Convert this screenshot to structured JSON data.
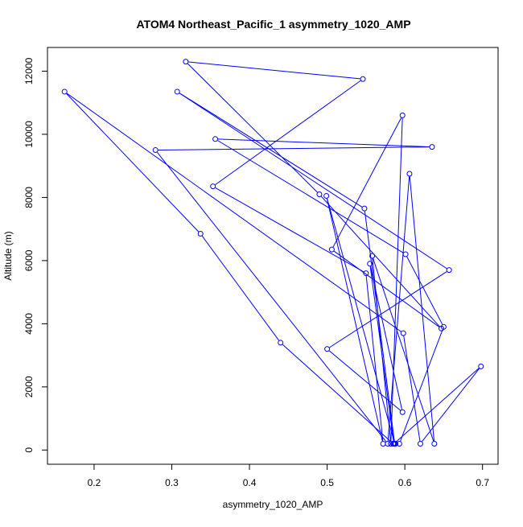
{
  "chart_data": {
    "type": "line",
    "title": "ATOM4 Northeast_Pacific_1 asymmetry_1020_AMP",
    "xlabel": "asymmetry_1020_AMP",
    "ylabel": "Altitude (m)",
    "xlim": [
      0.14,
      0.72
    ],
    "ylim": [
      -450,
      12750
    ],
    "x_ticks": [
      0.2,
      0.3,
      0.4,
      0.5,
      0.6,
      0.7
    ],
    "x_tick_labels": [
      "0.2",
      "0.3",
      "0.4",
      "0.5",
      "0.6",
      "0.7"
    ],
    "y_ticks": [
      0,
      2000,
      4000,
      6000,
      8000,
      10000,
      12000
    ],
    "y_tick_labels": [
      "0",
      "2000",
      "4000",
      "6000",
      "8000",
      "10000",
      "12000"
    ],
    "grid": false,
    "line_color": "#0000ff",
    "marker": "open-circle",
    "series": [
      {
        "x": [
          0.585,
          0.44,
          0.337,
          0.162,
          0.598,
          0.62,
          0.698,
          0.586,
          0.555,
          0.597,
          0.5,
          0.657,
          0.307,
          0.548,
          0.587,
          0.499,
          0.572,
          0.55,
          0.353,
          0.546,
          0.318,
          0.49,
          0.647,
          0.506,
          0.597,
          0.582,
          0.558,
          0.638,
          0.606,
          0.578,
          0.279,
          0.635,
          0.356,
          0.601,
          0.65,
          0.593,
          0.588
        ],
        "y": [
          200,
          3400,
          6850,
          11350,
          3700,
          200,
          2650,
          200,
          5900,
          1200,
          3200,
          5700,
          11350,
          7650,
          200,
          8050,
          200,
          5600,
          8350,
          11750,
          12300,
          8100,
          3850,
          6350,
          10600,
          200,
          6150,
          200,
          8750,
          200,
          9500,
          9600,
          9850,
          6200,
          3900,
          200,
          200
        ]
      }
    ]
  }
}
